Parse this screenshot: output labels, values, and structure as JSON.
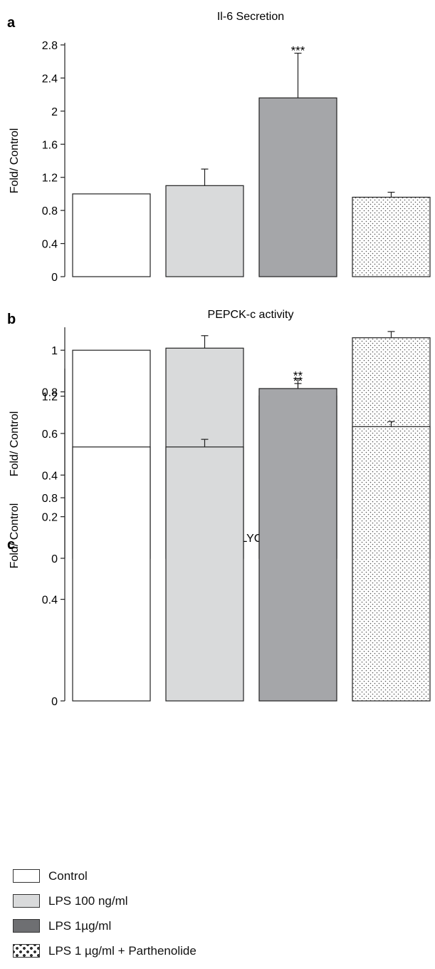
{
  "chart_data": [
    {
      "type": "bar",
      "panel_label": "a",
      "title": "Il-6 Secretion",
      "ylabel": "Fold/ Control",
      "ylim": [
        0,
        2.8
      ],
      "yticks": [
        "0",
        "0.4",
        "0.8",
        "1.2",
        "1.6",
        "2",
        "2.4",
        "2.8"
      ],
      "categories": [
        "Control",
        "LPS 100 ng/ml",
        "LPS 1µg/ml",
        "LPS 1 µg/ml + Parthenolide"
      ],
      "values": [
        1.0,
        1.1,
        2.16,
        0.96
      ],
      "errors": [
        0,
        0.2,
        0.54,
        0.06
      ],
      "annotations": [
        "",
        "",
        "***",
        ""
      ]
    },
    {
      "type": "bar",
      "panel_label": "b",
      "title": "PEPCK-c activity",
      "ylabel": "Fold/ Control",
      "ylim": [
        0,
        1.1
      ],
      "yticks": [
        "0",
        "0.2",
        "0.4",
        "0.6",
        "0.8",
        "1"
      ],
      "categories": [
        "Control",
        "LPS 100 ng/ml",
        "LPS 1µg/ml",
        "LPS 1 µg/ml + Parthenolide"
      ],
      "values": [
        1.0,
        1.01,
        0.78,
        1.06
      ],
      "errors": [
        0,
        0.06,
        0.06,
        0.03
      ],
      "annotations": [
        "",
        "",
        "**",
        ""
      ]
    },
    {
      "type": "bar",
      "panel_label": "c",
      "title": "FFA/GLYCEROL",
      "ylabel": "Fold/ Control",
      "ylim": [
        0,
        1.3
      ],
      "yticks": [
        "0",
        "0.4",
        "0.8",
        "1.2"
      ],
      "categories": [
        "Control",
        "LPS 100 ng/ml",
        "LPS 1µg/ml",
        "LPS 1 µg/ml + Parthenolide"
      ],
      "values": [
        1.0,
        1.0,
        1.23,
        1.08
      ],
      "errors": [
        0,
        0.03,
        0.04,
        0.02
      ],
      "annotations": [
        "",
        "",
        "**",
        ""
      ]
    }
  ],
  "legend": [
    {
      "label": "Control",
      "fill": "#ffffff"
    },
    {
      "label": "LPS 100 ng/ml",
      "fill": "#d9dadb"
    },
    {
      "label": "LPS 1µg/ml",
      "fill": "#a5a6a9"
    },
    {
      "label": "LPS 1 µg/ml + Parthenolide",
      "fill": "dots"
    }
  ],
  "colors": {
    "control": "#ffffff",
    "lps_100": "#d9dadb",
    "lps_1": "#a5a6a9",
    "parthenolide_dots": "#555555",
    "stroke": "#222222"
  }
}
